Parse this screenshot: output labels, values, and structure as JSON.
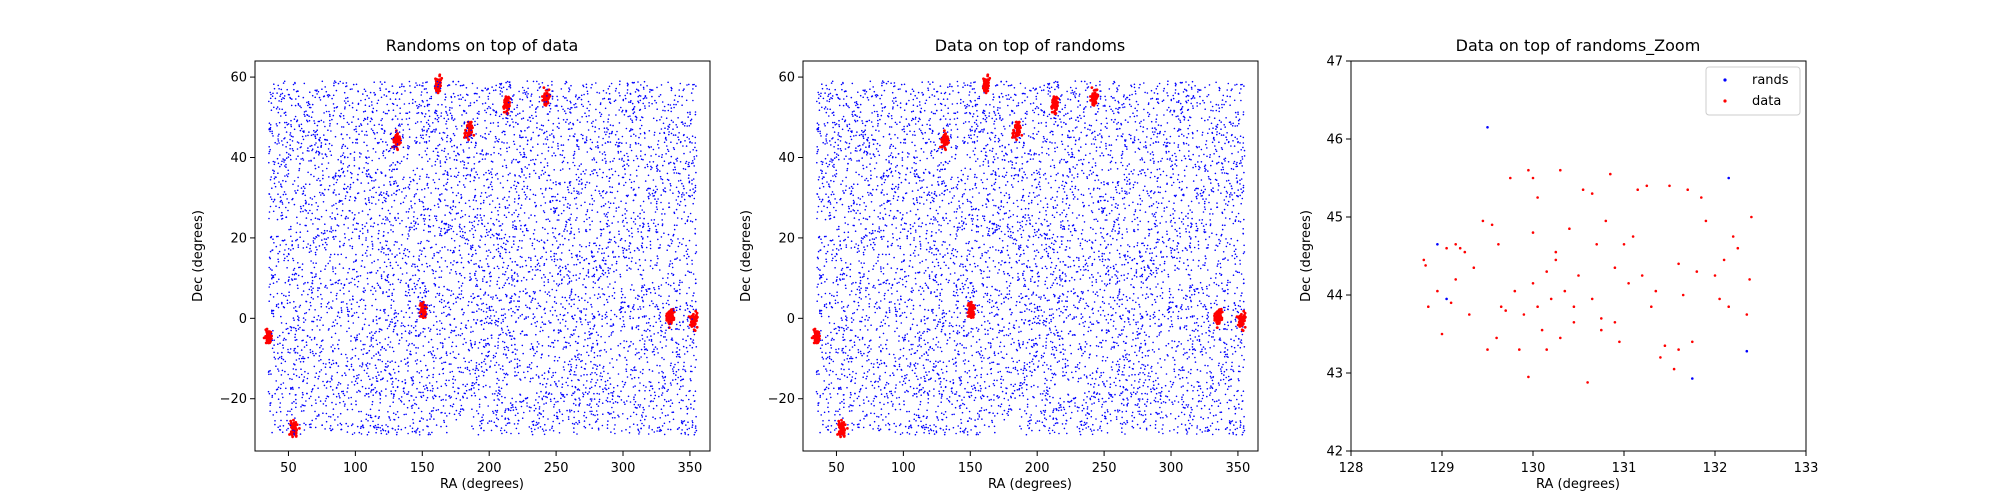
{
  "colors": {
    "rands": "#0000ff",
    "data": "#ff0000",
    "frame": "#000000",
    "background": "#ffffff"
  },
  "chart_data": [
    {
      "type": "scatter",
      "title": "Randoms on top of data",
      "xlabel": "RA (degrees)",
      "ylabel": "Dec (degrees)",
      "xlim": [
        25,
        365
      ],
      "ylim": [
        -33,
        64
      ],
      "xticks": [
        50,
        100,
        150,
        200,
        250,
        300,
        350
      ],
      "yticks": [
        -20,
        0,
        20,
        40,
        60
      ],
      "draw_order": [
        "data",
        "rands"
      ],
      "legend": null,
      "series": [
        {
          "key": "rands",
          "color": "#0000ff",
          "uniform_region": {
            "ra": [
              35,
              355
            ],
            "dec": [
              -29,
              59
            ],
            "count": 6500
          }
        },
        {
          "key": "data",
          "color": "#ff0000",
          "clusters": [
            {
              "ra": 35,
              "dec": -4.5,
              "count": 70
            },
            {
              "ra": 54,
              "dec": -27.5,
              "count": 70
            },
            {
              "ra": 131,
              "dec": 44.5,
              "count": 70
            },
            {
              "ra": 151,
              "dec": 2,
              "count": 70
            },
            {
              "ra": 162,
              "dec": 58,
              "count": 70
            },
            {
              "ra": 185,
              "dec": 47,
              "count": 70
            },
            {
              "ra": 213,
              "dec": 53,
              "count": 70
            },
            {
              "ra": 243,
              "dec": 55,
              "count": 70
            },
            {
              "ra": 335,
              "dec": 0.5,
              "count": 70
            },
            {
              "ra": 353,
              "dec": -0.5,
              "count": 70
            }
          ]
        }
      ]
    },
    {
      "type": "scatter",
      "title": "Data on top of randoms",
      "xlabel": "RA (degrees)",
      "ylabel": "Dec (degrees)",
      "xlim": [
        25,
        365
      ],
      "ylim": [
        -33,
        64
      ],
      "xticks": [
        50,
        100,
        150,
        200,
        250,
        300,
        350
      ],
      "yticks": [
        -20,
        0,
        20,
        40,
        60
      ],
      "draw_order": [
        "rands",
        "data"
      ],
      "legend": null,
      "series": [
        {
          "key": "rands",
          "color": "#0000ff",
          "uniform_region": {
            "ra": [
              35,
              355
            ],
            "dec": [
              -29,
              59
            ],
            "count": 6500
          }
        },
        {
          "key": "data",
          "color": "#ff0000",
          "clusters": [
            {
              "ra": 35,
              "dec": -4.5,
              "count": 70
            },
            {
              "ra": 54,
              "dec": -27.5,
              "count": 70
            },
            {
              "ra": 131,
              "dec": 44.5,
              "count": 70
            },
            {
              "ra": 151,
              "dec": 2,
              "count": 70
            },
            {
              "ra": 162,
              "dec": 58,
              "count": 70
            },
            {
              "ra": 185,
              "dec": 47,
              "count": 70
            },
            {
              "ra": 213,
              "dec": 53,
              "count": 70
            },
            {
              "ra": 243,
              "dec": 55,
              "count": 70
            },
            {
              "ra": 335,
              "dec": 0.5,
              "count": 70
            },
            {
              "ra": 353,
              "dec": -0.5,
              "count": 70
            }
          ]
        }
      ]
    },
    {
      "type": "scatter",
      "title": "Data on top of randoms_Zoom",
      "xlabel": "RA (degrees)",
      "ylabel": "Dec (degrees)",
      "xlim": [
        128,
        133
      ],
      "ylim": [
        42,
        47
      ],
      "xticks": [
        128,
        129,
        130,
        131,
        132,
        133
      ],
      "yticks": [
        42,
        43,
        44,
        45,
        46,
        47
      ],
      "draw_order": [
        "rands",
        "data"
      ],
      "legend": {
        "position": "upper right",
        "entries": [
          "rands",
          "data"
        ]
      },
      "series": [
        {
          "key": "rands",
          "name": "rands",
          "color": "#0000ff",
          "points": [
            [
              129.5,
              46.15
            ],
            [
              132.15,
              45.5
            ],
            [
              128.95,
              44.65
            ],
            [
              129.05,
              43.95
            ],
            [
              131.75,
              42.93
            ],
            [
              132.35,
              43.28
            ]
          ]
        },
        {
          "key": "data",
          "name": "data",
          "color": "#ff0000",
          "points": [
            [
              128.8,
              44.45
            ],
            [
              128.82,
              44.38
            ],
            [
              128.85,
              43.85
            ],
            [
              128.95,
              44.05
            ],
            [
              129.0,
              43.5
            ],
            [
              129.05,
              44.6
            ],
            [
              129.15,
              44.65
            ],
            [
              129.2,
              44.6
            ],
            [
              129.25,
              44.55
            ],
            [
              129.15,
              44.2
            ],
            [
              129.1,
              43.9
            ],
            [
              129.35,
              44.35
            ],
            [
              129.45,
              44.95
            ],
            [
              129.5,
              43.3
            ],
            [
              129.55,
              44.9
            ],
            [
              129.6,
              43.45
            ],
            [
              129.62,
              44.65
            ],
            [
              129.65,
              43.85
            ],
            [
              129.7,
              43.8
            ],
            [
              129.75,
              45.5
            ],
            [
              129.8,
              44.05
            ],
            [
              129.85,
              43.3
            ],
            [
              129.9,
              43.75
            ],
            [
              129.95,
              45.6
            ],
            [
              129.95,
              42.95
            ],
            [
              130.0,
              44.8
            ],
            [
              130.0,
              45.5
            ],
            [
              130.05,
              45.25
            ],
            [
              130.05,
              43.85
            ],
            [
              130.1,
              43.55
            ],
            [
              130.15,
              44.3
            ],
            [
              130.2,
              43.95
            ],
            [
              130.25,
              44.55
            ],
            [
              130.3,
              45.6
            ],
            [
              130.3,
              43.45
            ],
            [
              130.35,
              44.05
            ],
            [
              130.4,
              44.85
            ],
            [
              130.45,
              43.65
            ],
            [
              130.45,
              43.85
            ],
            [
              130.55,
              45.35
            ],
            [
              130.6,
              42.88
            ],
            [
              130.65,
              45.3
            ],
            [
              130.7,
              44.65
            ],
            [
              130.75,
              43.55
            ],
            [
              130.75,
              43.7
            ],
            [
              130.8,
              44.95
            ],
            [
              130.85,
              45.55
            ],
            [
              130.9,
              44.35
            ],
            [
              130.95,
              43.4
            ],
            [
              131.05,
              44.15
            ],
            [
              131.1,
              44.75
            ],
            [
              131.15,
              45.35
            ],
            [
              131.2,
              44.25
            ],
            [
              131.25,
              45.4
            ],
            [
              131.35,
              44.05
            ],
            [
              131.4,
              43.2
            ],
            [
              131.45,
              43.35
            ],
            [
              131.5,
              45.4
            ],
            [
              131.55,
              43.05
            ],
            [
              131.6,
              44.4
            ],
            [
              131.65,
              44.0
            ],
            [
              131.7,
              45.35
            ],
            [
              131.75,
              43.4
            ],
            [
              131.8,
              44.3
            ],
            [
              131.85,
              45.25
            ],
            [
              131.9,
              44.95
            ],
            [
              132.0,
              44.25
            ],
            [
              132.05,
              43.95
            ],
            [
              132.1,
              44.45
            ],
            [
              132.15,
              43.85
            ],
            [
              132.2,
              44.75
            ],
            [
              132.25,
              44.6
            ],
            [
              132.35,
              43.75
            ],
            [
              132.38,
              44.2
            ],
            [
              132.4,
              45.0
            ],
            [
              130.25,
              44.45
            ],
            [
              130.5,
              44.25
            ],
            [
              130.9,
              43.65
            ],
            [
              131.0,
              44.65
            ],
            [
              131.3,
              43.85
            ],
            [
              129.3,
              43.75
            ],
            [
              130.15,
              43.3
            ],
            [
              131.6,
              43.3
            ],
            [
              130.65,
              43.95
            ],
            [
              130.0,
              44.15
            ]
          ]
        }
      ]
    }
  ]
}
